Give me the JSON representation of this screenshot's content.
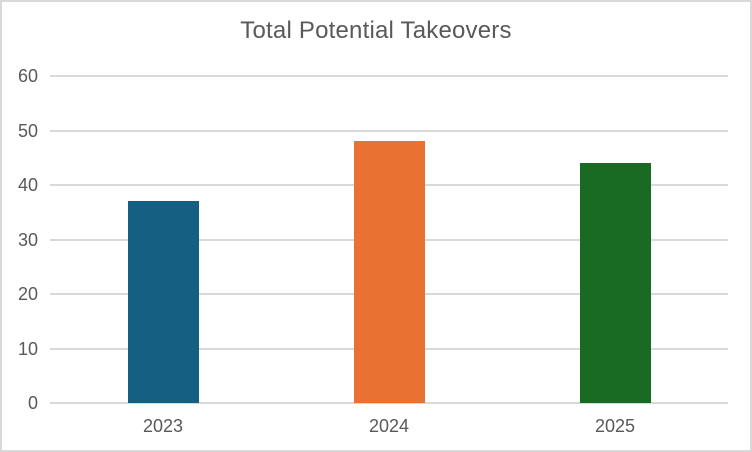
{
  "chart_data": {
    "type": "bar",
    "title": "Total Potential Takeovers",
    "categories": [
      "2023",
      "2024",
      "2025"
    ],
    "values": [
      37,
      48,
      44
    ],
    "series": [
      {
        "name": "Total Potential Takeovers",
        "values": [
          37,
          48,
          44
        ]
      }
    ],
    "bar_colors": [
      "#156082",
      "#E97132",
      "#196B24"
    ],
    "ylim": [
      0,
      60
    ],
    "yticks": [
      0,
      10,
      20,
      30,
      40,
      50,
      60
    ],
    "xlabel": "",
    "ylabel": "",
    "grid": true,
    "legend_position": "none"
  },
  "colors": {
    "background": "#FFFFFF",
    "frame_border": "#D9D9D9",
    "gridline": "#D9D9D9",
    "title_text": "#595959",
    "axis_text": "#595959"
  }
}
